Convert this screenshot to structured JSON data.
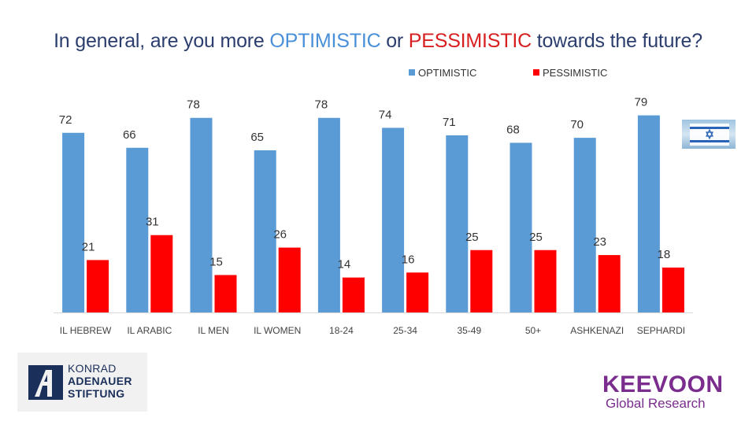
{
  "title": {
    "prefix": "In general, are you more ",
    "optimistic": "OPTIMISTIC",
    "middle": " or ",
    "pessimistic": "PESSIMISTIC",
    "suffix": " towards the future?"
  },
  "chart_data": {
    "type": "bar",
    "title": "In general, are you more OPTIMISTIC or PESSIMISTIC towards the future?",
    "categories": [
      "IL HEBREW",
      "IL ARABIC",
      "IL MEN",
      "IL WOMEN",
      "18-24",
      "25-34",
      "35-49",
      "50+",
      "ASHKENAZI",
      "SEPHARDI"
    ],
    "series": [
      {
        "name": "OPTIMISTIC",
        "color": "#5b9bd5",
        "values": [
          72,
          66,
          78,
          65,
          78,
          74,
          71,
          68,
          70,
          79
        ]
      },
      {
        "name": "PESSIMISTIC",
        "color": "#ff0000",
        "values": [
          21,
          31,
          15,
          26,
          14,
          16,
          25,
          25,
          23,
          18
        ]
      }
    ],
    "ylim": [
      0,
      100
    ],
    "legend_position": "top-right",
    "grid": false,
    "xlabel": "",
    "ylabel": ""
  },
  "logos": {
    "kas": {
      "line1": "KONRAD",
      "line2": "ADENAUER",
      "line3": "STIFTUNG"
    },
    "keevoon": {
      "brand": "KEEVOON",
      "sub": "Global Research"
    }
  }
}
